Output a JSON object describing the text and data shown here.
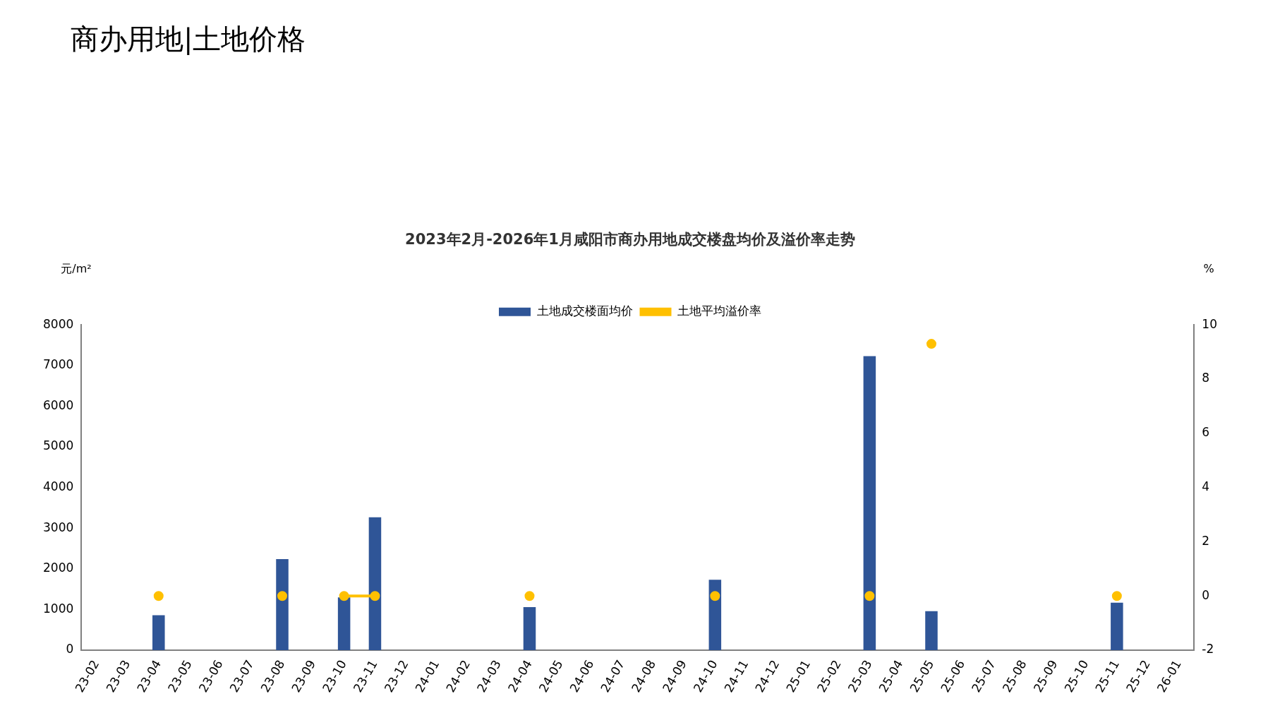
{
  "chart_data": {
    "type": "bar",
    "title": "2023年2月-2026年1月咸阳市商办用地成交楼盘均价及溢价率走势",
    "subtitle": "商办用地|土地价格",
    "ylabel": "元/m²",
    "y2label": "%",
    "categories": [
      "23-02",
      "23-03",
      "23-04",
      "23-05",
      "23-06",
      "23-07",
      "23-08",
      "23-09",
      "23-10",
      "23-11",
      "23-12",
      "24-01",
      "24-02",
      "24-03",
      "24-04",
      "24-05",
      "24-06",
      "24-07",
      "24-08",
      "24-09",
      "24-10",
      "24-11",
      "24-12",
      "25-01",
      "25-02",
      "25-03",
      "25-04",
      "25-05",
      "25-06",
      "25-07",
      "25-08",
      "25-09",
      "25-10",
      "25-11",
      "25-12",
      "26-01"
    ],
    "series": [
      {
        "name": "土地成交楼面均价",
        "color": "#2f5597",
        "values": [
          null,
          null,
          860,
          null,
          null,
          null,
          2240,
          null,
          1300,
          3270,
          null,
          null,
          null,
          null,
          1060,
          null,
          null,
          null,
          null,
          null,
          1730,
          null,
          null,
          null,
          null,
          7230,
          null,
          960,
          null,
          null,
          null,
          null,
          null,
          1170,
          null,
          null
        ]
      },
      {
        "name": "土地平均溢价率",
        "type": "line",
        "axis": "y2",
        "color": "#ffc000",
        "marker": "circle",
        "values": [
          null,
          null,
          0,
          null,
          null,
          null,
          0,
          null,
          0,
          0,
          null,
          null,
          null,
          null,
          0,
          null,
          null,
          null,
          null,
          null,
          0,
          null,
          null,
          null,
          null,
          0,
          null,
          9.3,
          null,
          null,
          null,
          null,
          null,
          0,
          null,
          null
        ]
      }
    ],
    "ylim": [
      0,
      8000
    ],
    "yticks": [
      0,
      1000,
      2000,
      3000,
      4000,
      5000,
      6000,
      7000,
      8000
    ],
    "y2lim": [
      -2,
      10
    ],
    "y2ticks": [
      -2,
      0,
      2,
      4,
      6,
      8,
      10
    ],
    "grid": false,
    "legend": "top"
  }
}
